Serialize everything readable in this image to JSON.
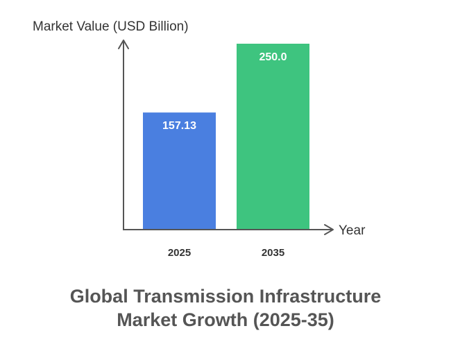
{
  "chart_data": {
    "type": "bar",
    "categories": [
      "2025",
      "2035"
    ],
    "values": [
      157.13,
      250.0
    ],
    "value_labels": [
      "157.13",
      "250.0"
    ],
    "colors": [
      "#4a7fe0",
      "#3ec47f"
    ],
    "ylabel": "Market Value (USD Billion)",
    "xlabel": "Year",
    "ylim": [
      0,
      250
    ],
    "grid": false,
    "legend": "none",
    "title_lines": [
      "Global Transmission Infrastructure",
      "Market Growth (2025-35)"
    ]
  },
  "colors": {
    "axis": "#555555",
    "axis_text": "#333333",
    "bar_label": "#ffffff",
    "title": "#555555"
  }
}
